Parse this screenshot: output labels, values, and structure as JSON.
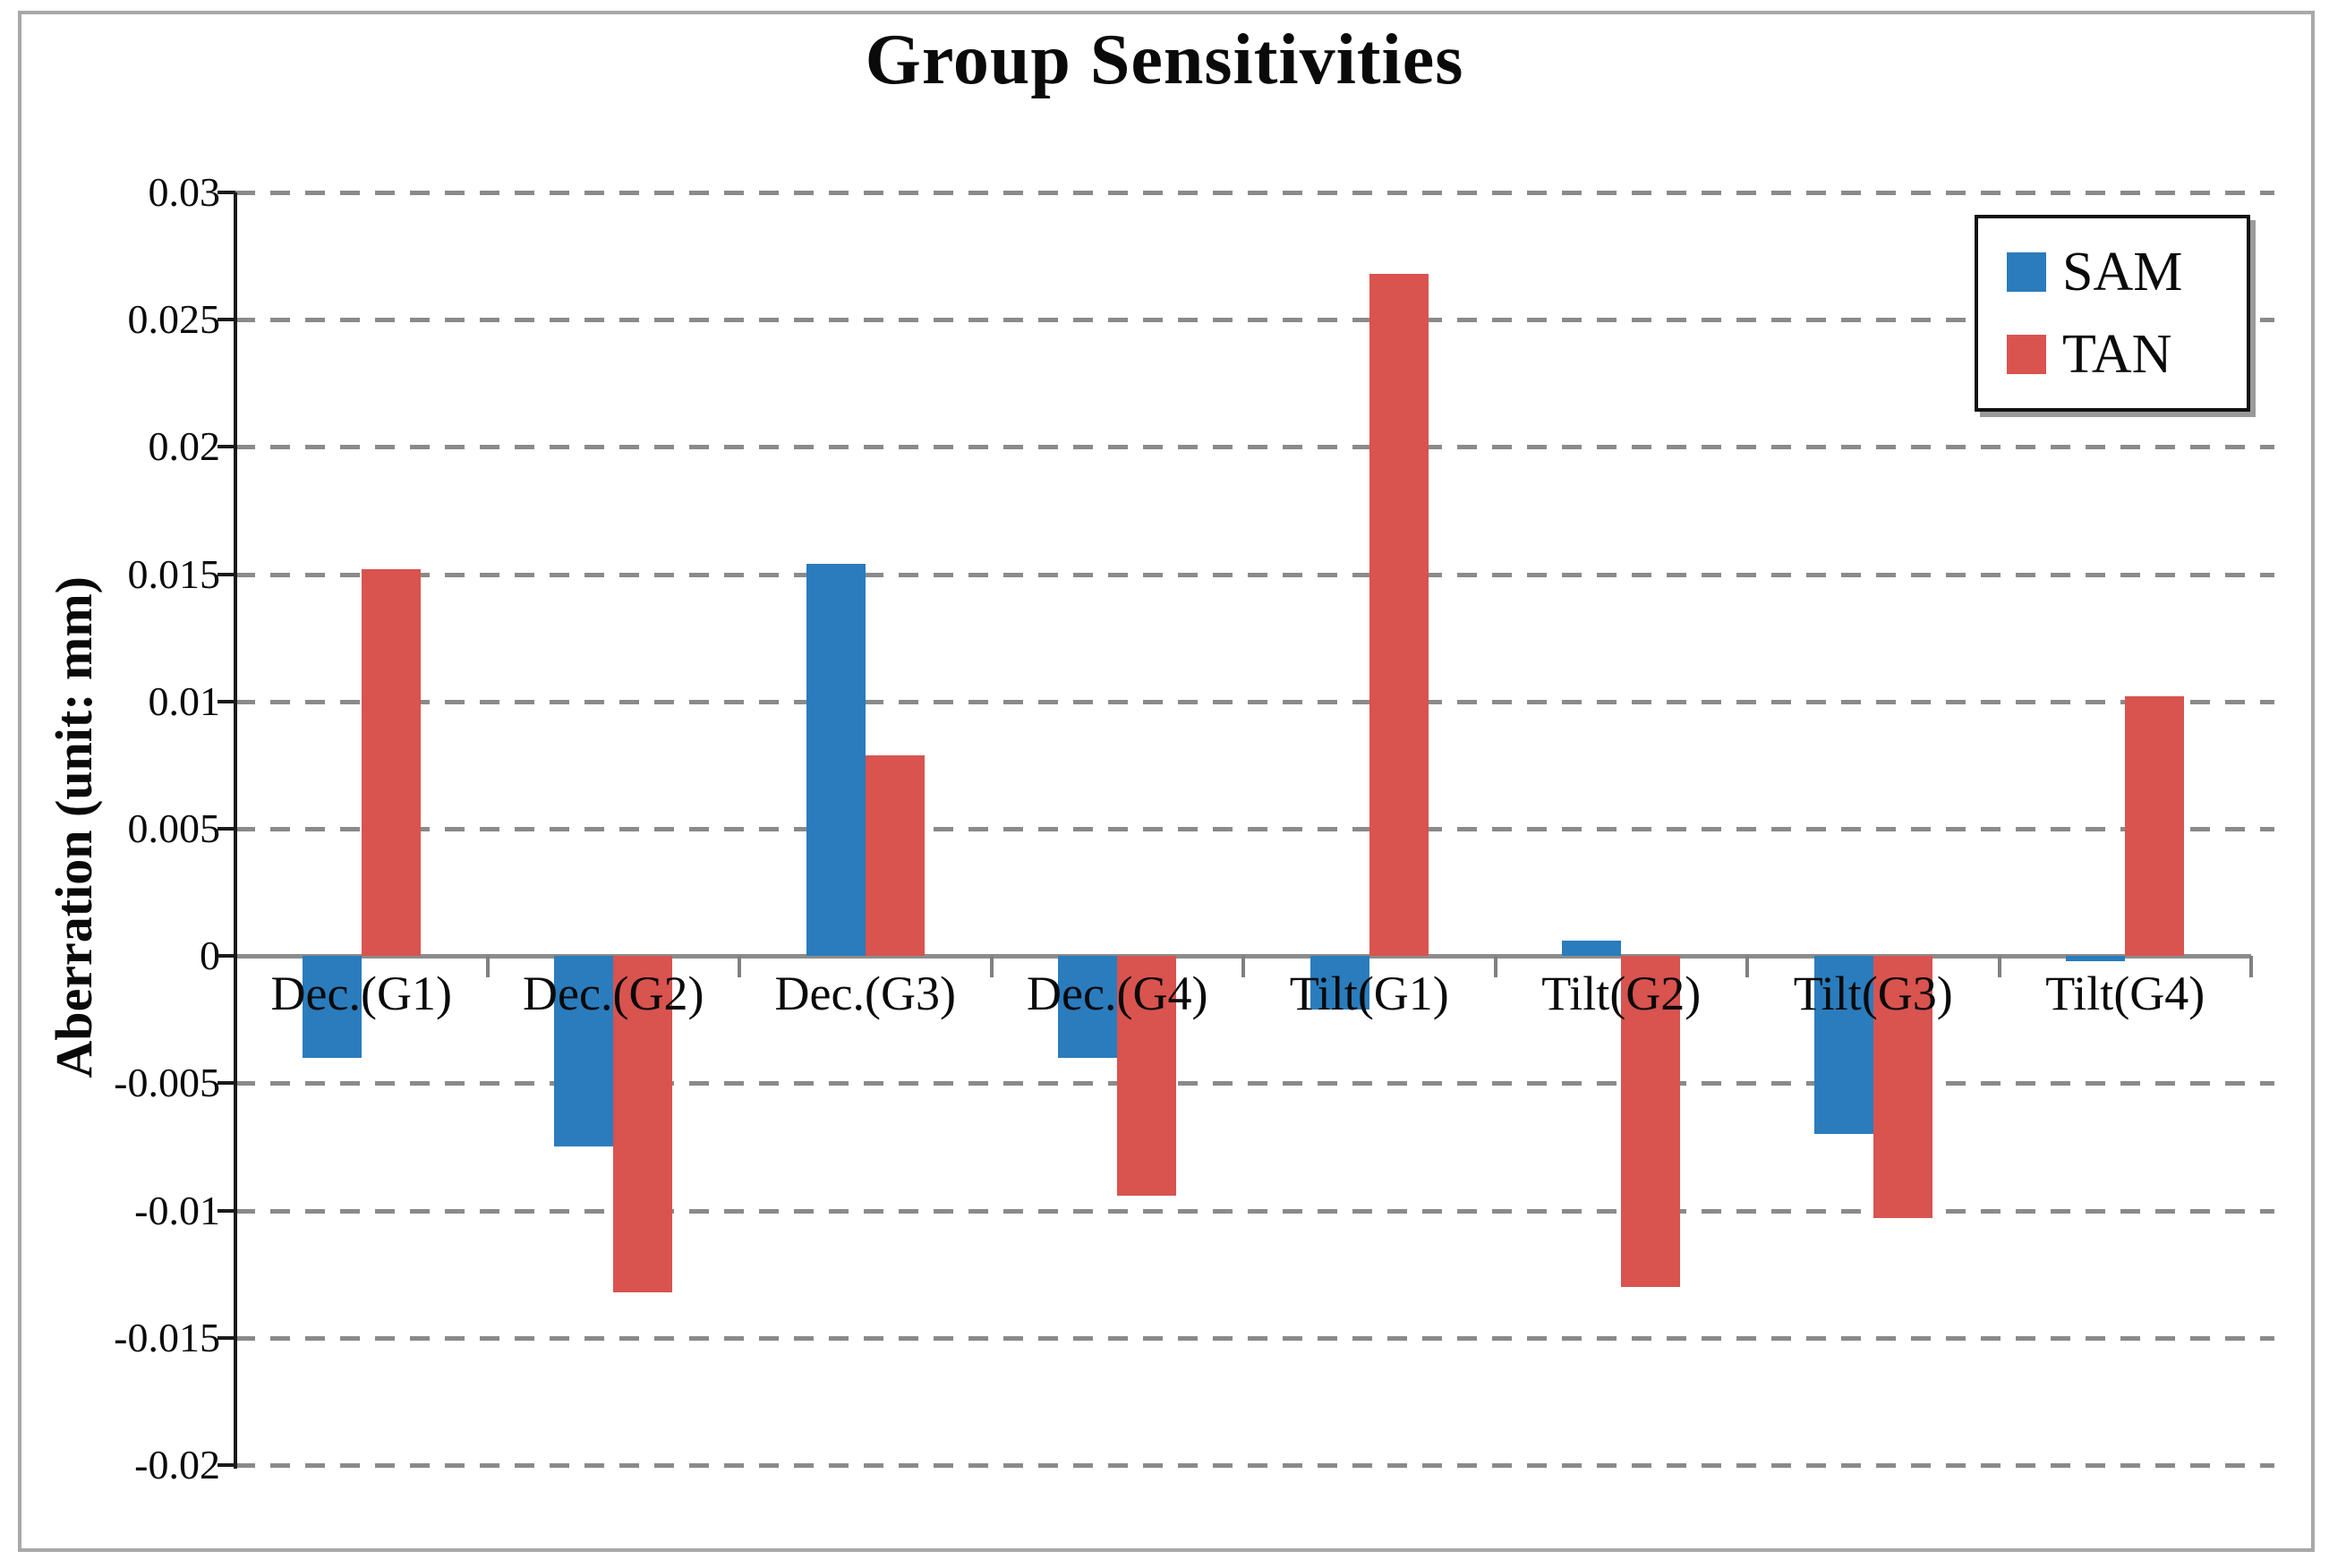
{
  "page": {
    "background_color": "#ffffff",
    "border_color": "#a8a8a8"
  },
  "chart_data": {
    "type": "bar",
    "title": "Group Sensitivities",
    "xlabel": "",
    "ylabel": "Aberration (unit: mm)",
    "ylim": [
      -0.02,
      0.03
    ],
    "ytick_step": 0.005,
    "grid": "dashed-horizontal",
    "legend_position": "top-right",
    "axis_color": "#1a1a1a",
    "zero_line_color": "#8c8c8c",
    "gridline_color": "#8a8a8a",
    "categories": [
      "Dec.(G1)",
      "Dec.(G2)",
      "Dec.(G3)",
      "Dec.(G4)",
      "Tilt(G1)",
      "Tilt(G2)",
      "Tilt(G3)",
      "Tilt(G4)"
    ],
    "series": [
      {
        "name": "SAM",
        "color": "#2a7cbd",
        "values": [
          -0.004,
          -0.0075,
          0.0154,
          -0.004,
          -0.0021,
          0.0006,
          -0.007,
          -0.0002
        ]
      },
      {
        "name": "TAN",
        "color": "#d9534f",
        "values": [
          0.0152,
          -0.0132,
          0.0079,
          -0.0094,
          0.0268,
          -0.013,
          -0.0103,
          0.0102
        ]
      }
    ],
    "yticks": [
      {
        "v": 0.03,
        "label": "0.03"
      },
      {
        "v": 0.025,
        "label": "0.025"
      },
      {
        "v": 0.02,
        "label": "0.02"
      },
      {
        "v": 0.015,
        "label": "0.015"
      },
      {
        "v": 0.01,
        "label": "0.01"
      },
      {
        "v": 0.005,
        "label": "0.005"
      },
      {
        "v": 0,
        "label": "0"
      },
      {
        "v": -0.005,
        "label": "-0.005"
      },
      {
        "v": -0.01,
        "label": "-0.01"
      },
      {
        "v": -0.015,
        "label": "-0.015"
      },
      {
        "v": -0.02,
        "label": "-0.02"
      }
    ]
  }
}
